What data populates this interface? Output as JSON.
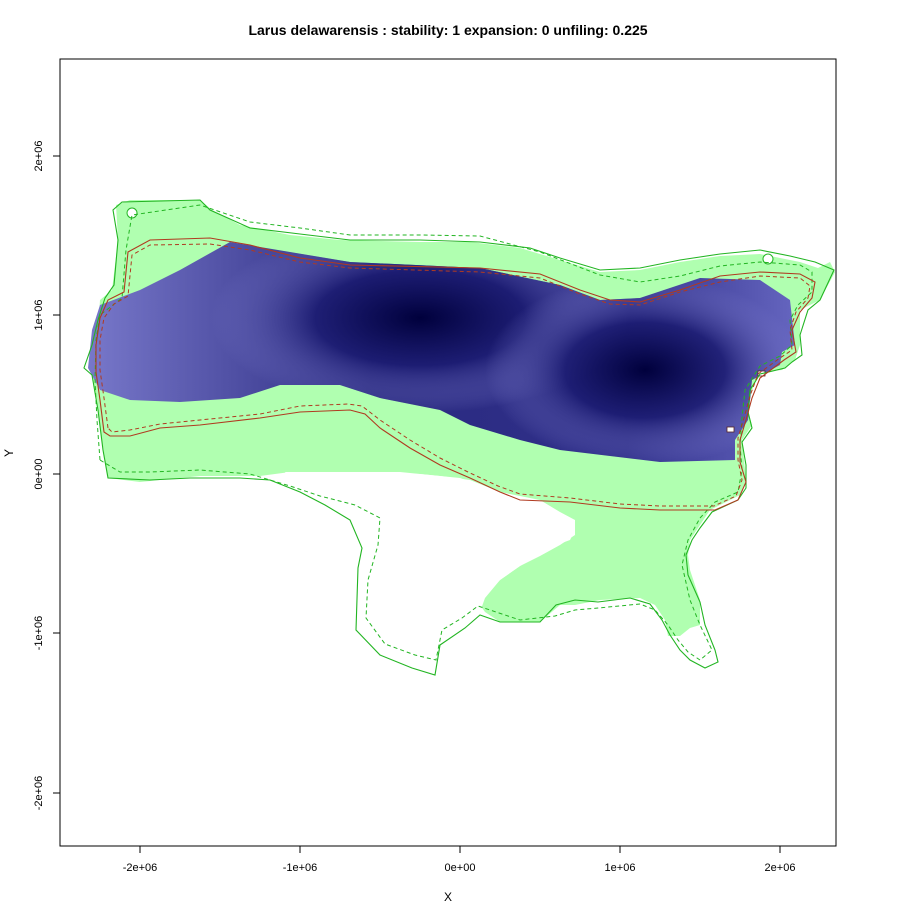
{
  "chart_data": {
    "type": "map",
    "title": "Larus delawarensis : stability: 1 expansion: 0 unfiling: 0.225",
    "xlabel": "X",
    "ylabel": "Y",
    "x_ticks": [
      "-2e+06",
      "-1e+06",
      "0e+00",
      "1e+06",
      "2e+06"
    ],
    "y_ticks": [
      "2e+06",
      "1e+06",
      "0e+00",
      "-1e+06",
      "-2e+06"
    ],
    "x_tick_values": [
      -2000000,
      -1000000,
      0,
      1000000,
      2000000
    ],
    "y_tick_values": [
      2000000,
      1000000,
      0,
      -1000000,
      -2000000
    ],
    "xlim": [
      -2500000,
      2350000
    ],
    "ylim": [
      -2330000,
      2600000
    ],
    "metrics": {
      "stability": 1,
      "expansion": 0,
      "unfilling": 0.225
    },
    "layers": [
      {
        "name": "unfilling area",
        "color": "#b0ffb0"
      },
      {
        "name": "stability (density)",
        "color_low": "#8a8ad8",
        "color_high": "#00003c"
      },
      {
        "name": "native range outline",
        "color": "#22aa22"
      },
      {
        "name": "invaded range outline",
        "color": "#aa3322"
      }
    ],
    "density_peaks": [
      {
        "x": -200000,
        "y": 1000000
      },
      {
        "x": 1200000,
        "y": 680000
      }
    ]
  },
  "colors": {
    "green_fill": "#b0ffb0",
    "green_line": "#22b522",
    "red_line": "#b03a20",
    "blue_light": "#8a8ad8",
    "blue_dark": "#00003c"
  }
}
